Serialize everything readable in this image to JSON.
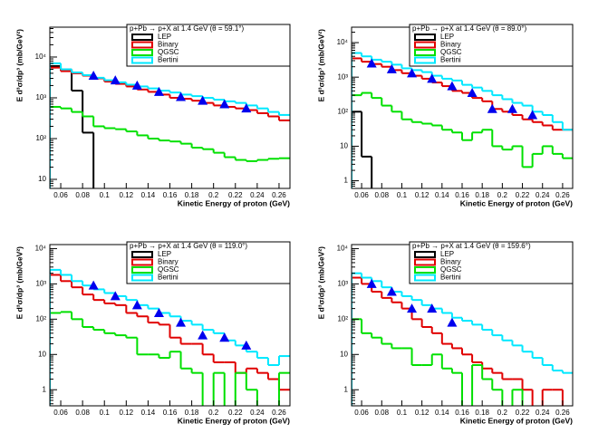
{
  "chart_data": [
    {
      "type": "histogram",
      "title": "p+Pb → p+X at 1.4 GeV (θ = 59.1°)",
      "x_label": "Kinetic Energy of proton (GeV)",
      "y_label": "E d³σ/dp³ (mb/GeV²)",
      "bins": [
        0.05,
        0.06,
        0.07,
        0.08,
        0.09,
        0.1,
        0.11,
        0.12,
        0.13,
        0.14,
        0.15,
        0.16,
        0.17,
        0.18,
        0.19,
        0.2,
        0.21,
        0.22,
        0.23,
        0.24,
        0.25,
        0.26,
        0.27
      ],
      "log_y": true,
      "xlim": [
        0.05,
        0.27
      ],
      "ylim": [
        6,
        54000
      ],
      "xticks": [
        0.06,
        0.08,
        0.1,
        0.12,
        0.14,
        0.16,
        0.18,
        0.2,
        0.22,
        0.24,
        0.26
      ],
      "yticks": [
        10,
        {
          "value": 100,
          "label": "10²"
        },
        {
          "value": 1000,
          "label": "10³"
        },
        {
          "value": 10000,
          "label": "10⁴"
        }
      ],
      "series": [
        {
          "name": "LEP",
          "color": "#000000",
          "values": [
            6000,
            5000,
            1500,
            140,
            null,
            null,
            null,
            null,
            null,
            null,
            null,
            null,
            null,
            null,
            null,
            null,
            null,
            null,
            null,
            null,
            null,
            null
          ]
        },
        {
          "name": "Binary",
          "color": "#e00000",
          "values": [
            5500,
            4500,
            4000,
            3500,
            3000,
            2500,
            2200,
            1900,
            1600,
            1400,
            1200,
            1000,
            950,
            850,
            750,
            650,
            600,
            550,
            500,
            420,
            350,
            280
          ]
        },
        {
          "name": "QGSC",
          "color": "#00e000",
          "values": [
            600,
            550,
            450,
            350,
            200,
            180,
            170,
            150,
            120,
            100,
            90,
            85,
            75,
            60,
            55,
            45,
            35,
            30,
            28,
            30,
            32,
            33
          ]
        },
        {
          "name": "Bertini",
          "color": "#00e8ff",
          "values": [
            7000,
            5000,
            4200,
            3600,
            3100,
            2700,
            2400,
            2100,
            1900,
            1700,
            1500,
            1350,
            1200,
            1100,
            1000,
            900,
            820,
            750,
            650,
            550,
            450,
            380
          ]
        }
      ],
      "points": {
        "color": "#0000ee",
        "x": [
          0.09,
          0.11,
          0.13,
          0.15,
          0.17,
          0.19,
          0.21,
          0.23
        ],
        "values": [
          3500,
          2700,
          2000,
          1400,
          1050,
          850,
          700,
          550
        ]
      }
    },
    {
      "type": "histogram",
      "title": "p+Pb → p+X at 1.4 GeV (θ = 89.0°)",
      "x_label": "Kinetic Energy of proton (GeV)",
      "y_label": "E d³σ/dp³ (mb/GeV²)",
      "bins": [
        0.05,
        0.06,
        0.07,
        0.08,
        0.09,
        0.1,
        0.11,
        0.12,
        0.13,
        0.14,
        0.15,
        0.16,
        0.17,
        0.18,
        0.19,
        0.2,
        0.21,
        0.22,
        0.23,
        0.24,
        0.25,
        0.26,
        0.27
      ],
      "log_y": true,
      "xlim": [
        0.05,
        0.27
      ],
      "ylim": [
        0.6,
        28000
      ],
      "xticks": [
        0.06,
        0.08,
        0.1,
        0.12,
        0.14,
        0.16,
        0.18,
        0.2,
        0.22,
        0.24,
        0.26
      ],
      "yticks": [
        1,
        10,
        {
          "value": 100,
          "label": "10²"
        },
        {
          "value": 1000,
          "label": "10³"
        },
        {
          "value": 10000,
          "label": "10⁴"
        }
      ],
      "series": [
        {
          "name": "LEP",
          "color": "#000000",
          "values": [
            100,
            5,
            null,
            null,
            null,
            null,
            null,
            null,
            null,
            null,
            null,
            null,
            null,
            null,
            null,
            null,
            null,
            null,
            null,
            null,
            null,
            null
          ]
        },
        {
          "name": "Binary",
          "color": "#e00000",
          "values": [
            3500,
            2800,
            2400,
            2000,
            1600,
            1300,
            1100,
            900,
            700,
            550,
            400,
            350,
            250,
            200,
            120,
            100,
            80,
            60,
            50,
            40,
            30,
            30
          ]
        },
        {
          "name": "QGSC",
          "color": "#00e000",
          "values": [
            300,
            350,
            250,
            150,
            100,
            60,
            50,
            45,
            40,
            30,
            25,
            15,
            25,
            30,
            10,
            8,
            10,
            2.5,
            6,
            10,
            6,
            4.5
          ]
        },
        {
          "name": "Bertini",
          "color": "#00e8ff",
          "values": [
            5000,
            4000,
            3200,
            2800,
            2300,
            1800,
            1600,
            1400,
            1100,
            900,
            800,
            600,
            500,
            400,
            300,
            230,
            180,
            150,
            100,
            80,
            50,
            30
          ]
        }
      ],
      "points": {
        "color": "#0000ee",
        "x": [
          0.07,
          0.09,
          0.11,
          0.13,
          0.15,
          0.17,
          0.19,
          0.21,
          0.23
        ],
        "values": [
          2500,
          1700,
          1300,
          900,
          550,
          350,
          120,
          120,
          80
        ]
      }
    },
    {
      "type": "histogram",
      "title": "p+Pb → p+X at 1.4 GeV (θ = 119.0°)",
      "x_label": "Kinetic Energy of proton (GeV)",
      "y_label": "E d³σ/dp³ (mb/GeV²)",
      "bins": [
        0.05,
        0.06,
        0.07,
        0.08,
        0.09,
        0.1,
        0.11,
        0.12,
        0.13,
        0.14,
        0.15,
        0.16,
        0.17,
        0.18,
        0.19,
        0.2,
        0.21,
        0.22,
        0.23,
        0.24,
        0.25,
        0.26,
        0.27
      ],
      "log_y": true,
      "xlim": [
        0.05,
        0.27
      ],
      "ylim": [
        0.35,
        13000
      ],
      "xticks": [
        0.06,
        0.08,
        0.1,
        0.12,
        0.14,
        0.16,
        0.18,
        0.2,
        0.22,
        0.24,
        0.26
      ],
      "yticks": [
        1,
        10,
        {
          "value": 100,
          "label": "10²"
        },
        {
          "value": 1000,
          "label": "10³"
        },
        {
          "value": 10000,
          "label": "10⁴"
        }
      ],
      "series": [
        {
          "name": "LEP",
          "color": "#000000",
          "values": [
            null,
            null,
            null,
            null,
            null,
            null,
            null,
            null,
            null,
            null,
            null,
            null,
            null,
            null,
            null,
            null,
            null,
            null,
            null,
            null,
            null,
            null
          ]
        },
        {
          "name": "Binary",
          "color": "#e00000",
          "values": [
            1800,
            1200,
            800,
            500,
            350,
            280,
            250,
            150,
            120,
            80,
            70,
            30,
            20,
            20,
            10,
            6,
            6,
            3,
            4,
            3,
            2,
            1
          ]
        },
        {
          "name": "QGSC",
          "color": "#00e000",
          "values": [
            150,
            160,
            100,
            60,
            50,
            40,
            35,
            30,
            10,
            10,
            8,
            12,
            4,
            3,
            null,
            3,
            null,
            3,
            1,
            null,
            null,
            3
          ]
        },
        {
          "name": "Bertini",
          "color": "#00e8ff",
          "values": [
            2500,
            1800,
            1200,
            900,
            700,
            550,
            450,
            350,
            250,
            200,
            150,
            120,
            90,
            70,
            50,
            40,
            25,
            18,
            12,
            8,
            5,
            9
          ]
        }
      ],
      "points": {
        "color": "#0000ee",
        "x": [
          0.09,
          0.11,
          0.13,
          0.15,
          0.17,
          0.19,
          0.21,
          0.23
        ],
        "values": [
          900,
          450,
          250,
          150,
          80,
          35,
          30,
          18
        ]
      }
    },
    {
      "type": "histogram",
      "title": "p+Pb → p+X at 1.4 GeV (θ = 159.6°)",
      "x_label": "Kinetic Energy of proton (GeV)",
      "y_label": "E d³σ/dp³ (mb/GeV²)",
      "bins": [
        0.05,
        0.06,
        0.07,
        0.08,
        0.09,
        0.1,
        0.11,
        0.12,
        0.13,
        0.14,
        0.15,
        0.16,
        0.17,
        0.18,
        0.19,
        0.2,
        0.21,
        0.22,
        0.23,
        0.24,
        0.25,
        0.26,
        0.27
      ],
      "log_y": true,
      "xlim": [
        0.05,
        0.27
      ],
      "ylim": [
        0.35,
        13000
      ],
      "xticks": [
        0.06,
        0.08,
        0.1,
        0.12,
        0.14,
        0.16,
        0.18,
        0.2,
        0.22,
        0.24,
        0.26
      ],
      "yticks": [
        1,
        10,
        {
          "value": 100,
          "label": "10²"
        },
        {
          "value": 1000,
          "label": "10³"
        },
        {
          "value": 10000,
          "label": "10⁴"
        }
      ],
      "series": [
        {
          "name": "LEP",
          "color": "#000000",
          "values": [
            null,
            null,
            null,
            null,
            null,
            null,
            null,
            null,
            null,
            null,
            null,
            null,
            null,
            null,
            null,
            null,
            null,
            null,
            null,
            null,
            null,
            null
          ]
        },
        {
          "name": "Binary",
          "color": "#e00000",
          "values": [
            1500,
            1000,
            600,
            400,
            300,
            200,
            100,
            60,
            40,
            20,
            15,
            10,
            6,
            4,
            3,
            2,
            2,
            1,
            null,
            1,
            1,
            null
          ]
        },
        {
          "name": "QGSC",
          "color": "#00e000",
          "values": [
            100,
            40,
            30,
            20,
            15,
            15,
            5,
            5,
            10,
            4,
            3,
            null,
            5,
            2,
            1,
            null,
            1,
            null,
            null,
            null,
            null,
            null
          ]
        },
        {
          "name": "Bertini",
          "color": "#00e8ff",
          "values": [
            2000,
            1500,
            1200,
            800,
            600,
            450,
            350,
            250,
            200,
            150,
            110,
            90,
            70,
            50,
            35,
            25,
            18,
            12,
            8,
            5,
            3.5,
            3
          ]
        }
      ],
      "points": {
        "color": "#0000ee",
        "x": [
          0.07,
          0.09,
          0.11,
          0.13,
          0.15
        ],
        "values": [
          1000,
          600,
          200,
          200,
          80
        ]
      }
    }
  ]
}
